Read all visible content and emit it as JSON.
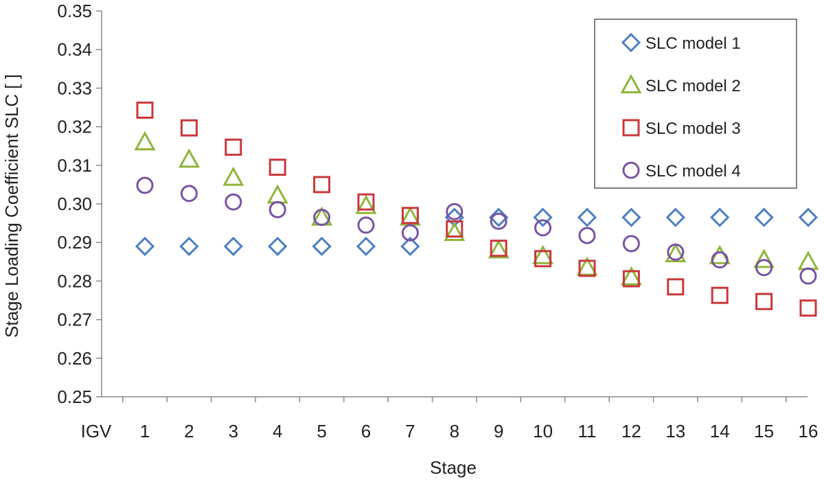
{
  "chart_data": {
    "type": "scatter",
    "xlabel": "Stage",
    "ylabel": "Stage Loading Coefficient SLC [ ]",
    "categories": [
      "IGV",
      "1",
      "2",
      "3",
      "4",
      "5",
      "6",
      "7",
      "8",
      "9",
      "10",
      "11",
      "12",
      "13",
      "14",
      "15",
      "16"
    ],
    "ylim": [
      0.25,
      0.35
    ],
    "yticks": [
      "0.25",
      "0.26",
      "0.27",
      "0.28",
      "0.29",
      "0.30",
      "0.31",
      "0.32",
      "0.33",
      "0.34",
      "0.35"
    ],
    "legend_position": "top-right",
    "grid": false,
    "series": [
      {
        "name": "SLC model 1",
        "marker": "diamond",
        "color": "#4a7ec3",
        "x": [
          "1",
          "2",
          "3",
          "4",
          "5",
          "6",
          "7",
          "8",
          "9",
          "10",
          "11",
          "12",
          "13",
          "14",
          "15",
          "16"
        ],
        "values": [
          0.289,
          0.289,
          0.289,
          0.289,
          0.289,
          0.289,
          0.289,
          0.2965,
          0.2965,
          0.2965,
          0.2965,
          0.2965,
          0.2965,
          0.2965,
          0.2965,
          0.2965
        ]
      },
      {
        "name": "SLC model 2",
        "marker": "triangle",
        "color": "#8db53a",
        "x": [
          "1",
          "2",
          "3",
          "4",
          "5",
          "6",
          "7",
          "8",
          "9",
          "10",
          "11",
          "12",
          "13",
          "14",
          "15",
          "16"
        ],
        "values": [
          0.316,
          0.3115,
          0.3068,
          0.3022,
          0.2965,
          0.2995,
          0.2965,
          0.2925,
          0.288,
          0.2865,
          0.2835,
          0.281,
          0.287,
          0.2865,
          0.2855,
          0.285
        ]
      },
      {
        "name": "SLC model 3",
        "marker": "square",
        "color": "#c9373a",
        "x": [
          "1",
          "2",
          "3",
          "4",
          "5",
          "6",
          "7",
          "8",
          "9",
          "10",
          "11",
          "12",
          "13",
          "14",
          "15",
          "16"
        ],
        "values": [
          0.3243,
          0.3197,
          0.3147,
          0.3095,
          0.305,
          0.3005,
          0.297,
          0.2935,
          0.2885,
          0.2858,
          0.2833,
          0.2806,
          0.2785,
          0.2763,
          0.2747,
          0.273
        ]
      },
      {
        "name": "SLC model 4",
        "marker": "circle",
        "color": "#7a52a3",
        "x": [
          "1",
          "2",
          "3",
          "4",
          "5",
          "6",
          "7",
          "8",
          "9",
          "10",
          "11",
          "12",
          "13",
          "14",
          "15",
          "16"
        ],
        "values": [
          0.3048,
          0.3027,
          0.3005,
          0.2985,
          0.2965,
          0.2945,
          0.2925,
          0.298,
          0.2955,
          0.2938,
          0.2918,
          0.2897,
          0.2875,
          0.2855,
          0.2835,
          0.2813
        ]
      }
    ]
  }
}
